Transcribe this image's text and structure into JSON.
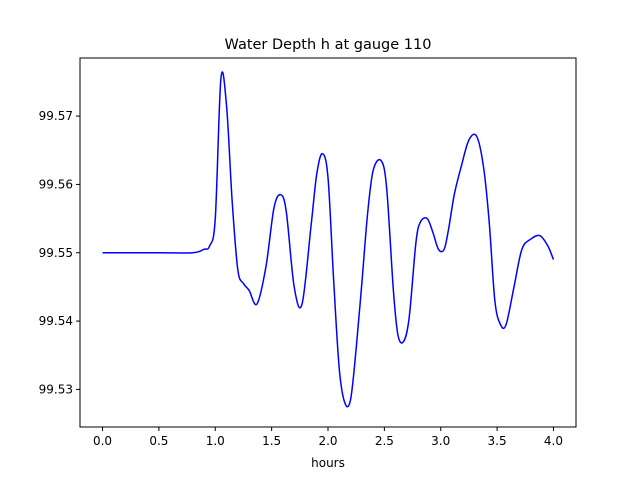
{
  "chart_data": {
    "type": "line",
    "title": "Water Depth h at gauge 110",
    "xlabel": "hours",
    "ylabel": "",
    "xlim": [
      -0.2,
      4.2
    ],
    "ylim": [
      99.5245,
      99.5785
    ],
    "xticks": [
      0.0,
      0.5,
      1.0,
      1.5,
      2.0,
      2.5,
      3.0,
      3.5,
      4.0
    ],
    "xtick_labels": [
      "0.0",
      "0.5",
      "1.0",
      "1.5",
      "2.0",
      "2.5",
      "3.0",
      "3.5",
      "4.0"
    ],
    "yticks": [
      99.53,
      99.54,
      99.55,
      99.56,
      99.57
    ],
    "ytick_labels": [
      "99.53",
      "99.54",
      "99.55",
      "99.56",
      "99.57"
    ],
    "grid": false,
    "series": [
      {
        "color": "#0000ff",
        "x": [
          0.0,
          0.5,
          0.8,
          0.9,
          0.95,
          1.0,
          1.05,
          1.1,
          1.15,
          1.2,
          1.25,
          1.3,
          1.37,
          1.45,
          1.52,
          1.58,
          1.63,
          1.7,
          1.77,
          1.85,
          1.9,
          1.95,
          2.0,
          2.05,
          2.1,
          2.15,
          2.2,
          2.25,
          2.3,
          2.35,
          2.4,
          2.47,
          2.52,
          2.58,
          2.62,
          2.67,
          2.72,
          2.78,
          2.82,
          2.88,
          2.93,
          2.98,
          3.03,
          3.07,
          3.12,
          3.18,
          3.25,
          3.32,
          3.38,
          3.43,
          3.48,
          3.53,
          3.58,
          3.65,
          3.72,
          3.8,
          3.88,
          3.95,
          4.0
        ],
        "y": [
          99.55,
          99.55,
          99.55,
          99.5505,
          99.551,
          99.555,
          99.5755,
          99.5715,
          99.5575,
          99.5475,
          99.5455,
          99.5445,
          99.5425,
          99.548,
          99.5565,
          99.5585,
          99.556,
          99.545,
          99.5425,
          99.554,
          99.5615,
          99.5645,
          99.561,
          99.546,
          99.533,
          99.528,
          99.5285,
          99.536,
          99.5455,
          99.5555,
          99.562,
          99.5635,
          99.5595,
          99.5445,
          99.538,
          99.537,
          99.5405,
          99.5515,
          99.5545,
          99.555,
          99.553,
          99.5505,
          99.5505,
          99.5535,
          99.5585,
          99.5625,
          99.5665,
          99.567,
          99.5625,
          99.5545,
          99.543,
          99.5395,
          99.5395,
          99.545,
          99.5505,
          99.552,
          99.5525,
          99.551,
          99.549
        ]
      }
    ]
  }
}
